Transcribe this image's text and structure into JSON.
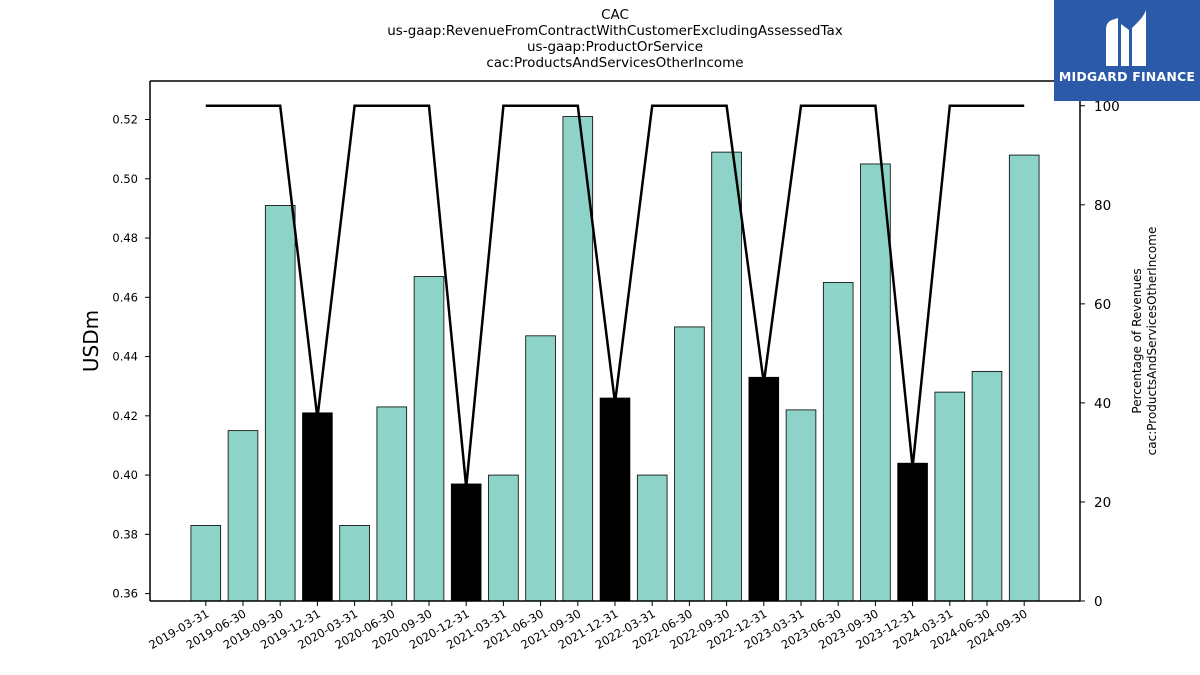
{
  "chart_data": {
    "type": "bar",
    "title": [
      "CAC",
      "us-gaap:RevenueFromContractWithCustomerExcludingAssessedTax",
      "us-gaap:ProductOrService",
      "cac:ProductsAndServicesOtherIncome"
    ],
    "ylabel": "USDm",
    "y2label": [
      "Percentage of Revenues",
      "cac:ProductsAndServicesOtherIncome"
    ],
    "ylim": [
      0.3575,
      0.533
    ],
    "y2lim": [
      0,
      105
    ],
    "yticks": [
      "0.36",
      "0.38",
      "0.40",
      "0.42",
      "0.44",
      "0.46",
      "0.48",
      "0.50",
      "0.52"
    ],
    "y2ticks": [
      "0",
      "20",
      "40",
      "60",
      "80",
      "100"
    ],
    "categories": [
      "2019-03-31",
      "2019-06-30",
      "2019-09-30",
      "2019-12-31",
      "2020-03-31",
      "2020-06-30",
      "2020-09-30",
      "2020-12-31",
      "2021-03-31",
      "2021-06-30",
      "2021-09-30",
      "2021-12-31",
      "2022-03-31",
      "2022-06-30",
      "2022-09-30",
      "2022-12-31",
      "2023-03-31",
      "2023-06-30",
      "2023-09-30",
      "2023-12-31",
      "2024-03-31",
      "2024-06-30",
      "2024-09-30"
    ],
    "series": [
      {
        "values": [
          0.383,
          0.415,
          0.491,
          0.421,
          0.383,
          0.423,
          0.467,
          0.397,
          0.4,
          0.447,
          0.521,
          0.426,
          0.4,
          0.45,
          0.509,
          0.433,
          0.422,
          0.465,
          0.505,
          0.404,
          0.428,
          0.435,
          0.508
        ]
      },
      {
        "values": [
          100,
          100,
          100,
          37,
          100,
          100,
          100,
          23,
          100,
          100,
          100,
          40,
          100,
          100,
          100,
          44,
          100,
          100,
          100,
          27,
          100,
          100,
          100
        ]
      }
    ],
    "highlight_indices": [
      3,
      7,
      11,
      15,
      19
    ],
    "colors": {
      "bar": "#8dd3c7",
      "highlight": "#000000",
      "line": "#000000"
    }
  },
  "brand": {
    "name": "MIDGARD FINANCE",
    "bg": "#2a5aa8"
  }
}
